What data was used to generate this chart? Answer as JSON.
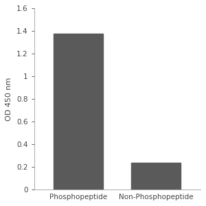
{
  "categories": [
    "Phosphopeptide",
    "Non-Phosphopeptide"
  ],
  "values": [
    1.38,
    0.235
  ],
  "bar_color": "#5a5a5a",
  "ylabel": "OD 450 nm",
  "ylim": [
    0,
    1.6
  ],
  "yticks": [
    0,
    0.2,
    0.4,
    0.6,
    0.8,
    1.0,
    1.2,
    1.4,
    1.6
  ],
  "ytick_labels": [
    "0",
    "0.2",
    "0.4",
    "0.6",
    "0.8",
    "1",
    "1.2",
    "1.4",
    "1.6"
  ],
  "background_color": "#ffffff",
  "bar_width": 0.45,
  "ylabel_fontsize": 8,
  "tick_fontsize": 7.5,
  "xlabel_fontsize": 7.5
}
